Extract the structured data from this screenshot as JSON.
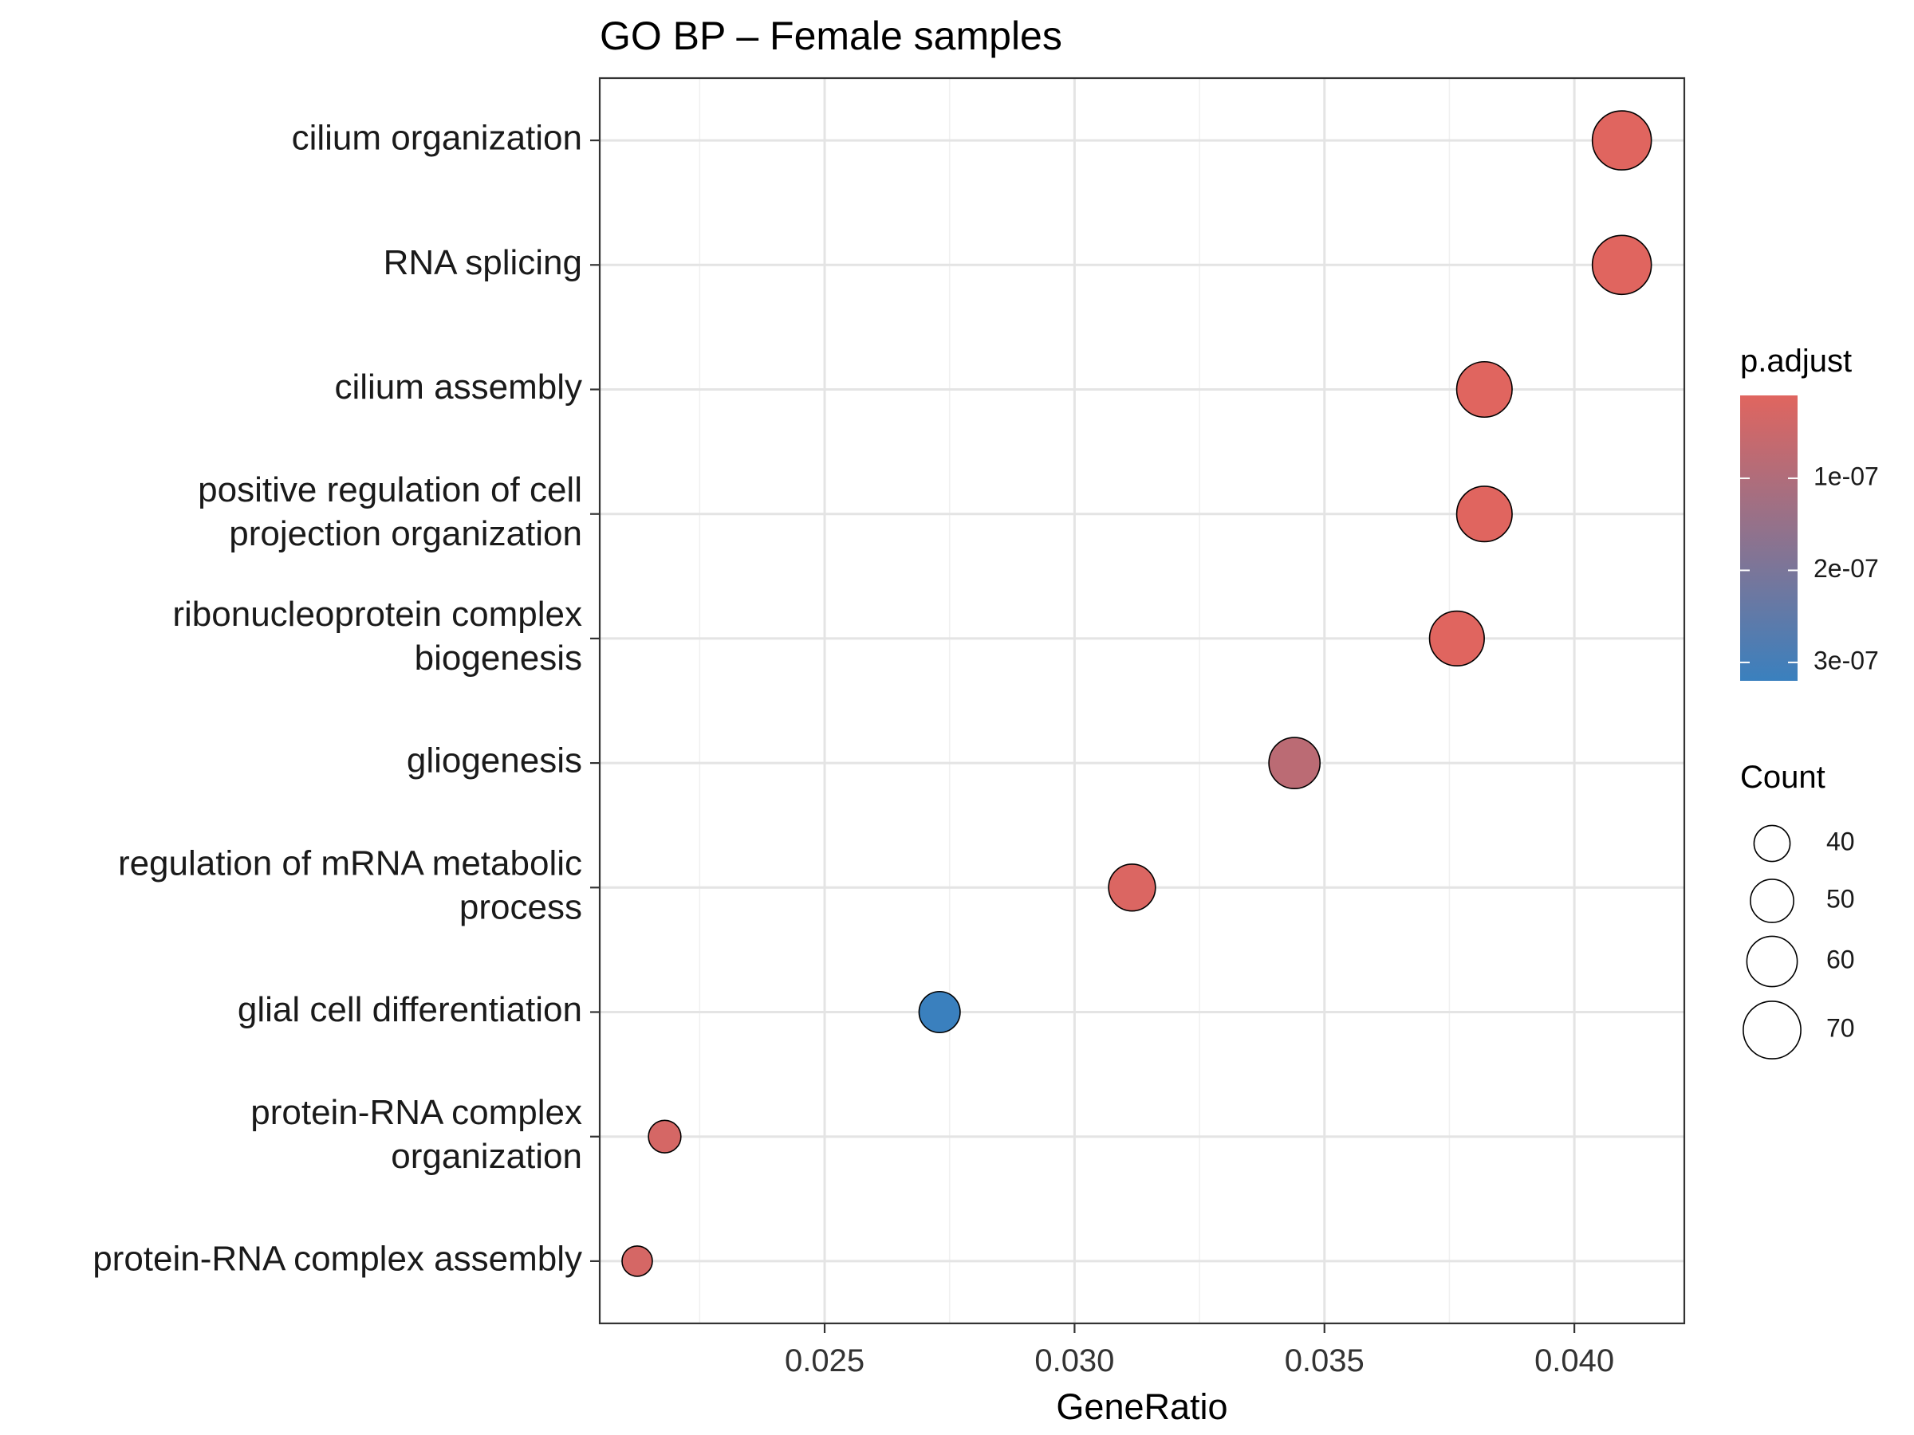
{
  "chart_data": {
    "type": "scatter",
    "title": "GO BP – Female samples",
    "xlabel": "GeneRatio",
    "ylabel": "",
    "xlim": [
      0.0205,
      0.0422
    ],
    "x_ticks": [
      0.025,
      0.03,
      0.035,
      0.04
    ],
    "x_tick_labels": [
      "0.025",
      "0.030",
      "0.035",
      "0.040"
    ],
    "grid": true,
    "categories": [
      [
        "cilium organization"
      ],
      [
        "RNA splicing"
      ],
      [
        "cilium assembly"
      ],
      [
        "positive regulation of cell",
        "projection organization"
      ],
      [
        "ribonucleoprotein complex",
        "biogenesis"
      ],
      [
        "gliogenesis"
      ],
      [
        "regulation of mRNA metabolic",
        "process"
      ],
      [
        "glial cell differentiation"
      ],
      [
        "protein-RNA complex",
        "organization"
      ],
      [
        "protein-RNA complex assembly"
      ]
    ],
    "points": [
      {
        "x": 0.04095,
        "count": 72,
        "p_adjust": 1e-08
      },
      {
        "x": 0.04095,
        "count": 72,
        "p_adjust": 1e-08
      },
      {
        "x": 0.0382,
        "count": 67,
        "p_adjust": 1e-08
      },
      {
        "x": 0.0382,
        "count": 67,
        "p_adjust": 1e-08
      },
      {
        "x": 0.03765,
        "count": 66,
        "p_adjust": 1e-08
      },
      {
        "x": 0.0344,
        "count": 61,
        "p_adjust": 8e-08
      },
      {
        "x": 0.03115,
        "count": 55,
        "p_adjust": 2e-08
      },
      {
        "x": 0.0273,
        "count": 47,
        "p_adjust": 3.2e-07
      },
      {
        "x": 0.0218,
        "count": 35,
        "p_adjust": 3e-08
      },
      {
        "x": 0.02125,
        "count": 32,
        "p_adjust": 3e-08
      }
    ],
    "legend": {
      "placement": "right",
      "color": {
        "title": "p.adjust",
        "range": [
          1e-08,
          3.2e-07
        ],
        "ticks": [
          1e-07,
          2e-07,
          3e-07
        ],
        "tick_labels": [
          "1e-07",
          "2e-07",
          "3e-07"
        ],
        "low_color": "#e0655f",
        "high_color": "#3a80be"
      },
      "size": {
        "title": "Count",
        "values": [
          40,
          50,
          60,
          70
        ],
        "labels": [
          "40",
          "50",
          "60",
          "70"
        ]
      }
    }
  }
}
